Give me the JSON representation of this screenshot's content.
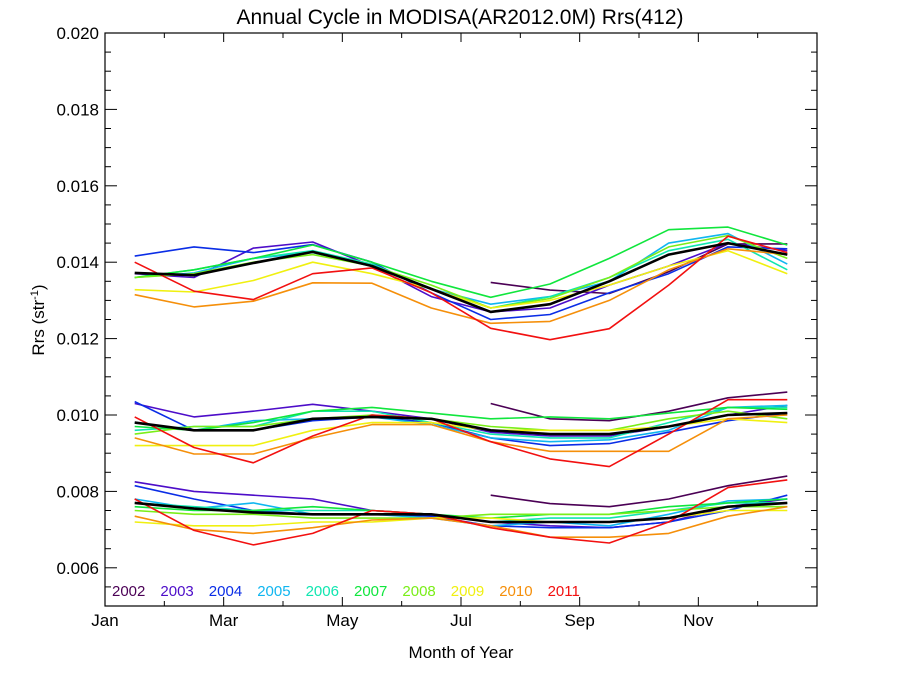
{
  "chart_data": {
    "type": "line",
    "title": "Annual Cycle in MODISA(AR2012.0M) Rrs(412)",
    "xlabel": "Month of Year",
    "ylabel": "Rrs (str",
    "ylabel_sup": "-1",
    "ylabel_close": ")",
    "xlim": [
      0,
      12
    ],
    "ylim": [
      0.005,
      0.02
    ],
    "x_ticks": [
      0,
      2,
      4,
      6,
      8,
      10
    ],
    "x_tick_labels": [
      "Jan",
      "Mar",
      "May",
      "Jul",
      "Sep",
      "Nov"
    ],
    "y_ticks": [
      0.006,
      0.008,
      0.01,
      0.012,
      0.014,
      0.016,
      0.018,
      0.02
    ],
    "y_tick_labels": [
      "0.006",
      "0.008",
      "0.010",
      "0.012",
      "0.014",
      "0.016",
      "0.018",
      "0.020"
    ],
    "grid": false,
    "legend_position": "bottom-left",
    "x": [
      0.5,
      1.5,
      2.5,
      3.5,
      4.5,
      5.5,
      6.5,
      7.5,
      8.5,
      9.5,
      10.5,
      11.5
    ],
    "series": [
      {
        "name": "2002",
        "color": "#4b0055",
        "upper": [
          null,
          null,
          null,
          null,
          null,
          null,
          0.01347,
          0.01327,
          0.01318,
          0.01375,
          0.01448,
          0.01448
        ],
        "middle": [
          null,
          null,
          null,
          null,
          null,
          null,
          0.0103,
          0.0099,
          0.00985,
          0.0101,
          0.01045,
          0.0106
        ],
        "lower": [
          null,
          null,
          null,
          null,
          null,
          null,
          0.0079,
          0.00768,
          0.0076,
          0.0078,
          0.00815,
          0.0084
        ]
      },
      {
        "name": "2003",
        "color": "#4d0dc9",
        "upper": [
          0.0137,
          0.0136,
          0.01437,
          0.01453,
          0.0139,
          0.0131,
          0.0127,
          0.0128,
          0.0134,
          0.0139,
          0.0145,
          0.0143
        ],
        "middle": [
          0.0103,
          0.00995,
          0.0101,
          0.01028,
          0.0101,
          0.0099,
          0.00955,
          0.00945,
          0.00945,
          0.0097,
          0.01,
          0.01025
        ],
        "lower": [
          0.00825,
          0.008,
          0.0079,
          0.0078,
          0.0075,
          0.0074,
          0.0072,
          0.0071,
          0.00705,
          0.0072,
          0.0076,
          0.0078
        ]
      },
      {
        "name": "2004",
        "color": "#0a2de6",
        "upper": [
          0.01416,
          0.0144,
          0.01425,
          0.01446,
          0.014,
          0.0132,
          0.0125,
          0.01263,
          0.0132,
          0.0137,
          0.0144,
          0.01435
        ],
        "middle": [
          0.01035,
          0.0096,
          0.0096,
          0.00985,
          0.00995,
          0.0098,
          0.0094,
          0.0092,
          0.00925,
          0.00955,
          0.00985,
          0.01005
        ],
        "lower": [
          0.00815,
          0.0078,
          0.0075,
          0.0074,
          0.0074,
          0.00735,
          0.0071,
          0.00705,
          0.00705,
          0.0072,
          0.0075,
          0.0079
        ]
      },
      {
        "name": "2005",
        "color": "#10b6f0",
        "upper": [
          0.0136,
          0.01372,
          0.0141,
          0.01425,
          0.0139,
          0.0133,
          0.0129,
          0.0131,
          0.0135,
          0.0145,
          0.01475,
          0.01395
        ],
        "middle": [
          0.0098,
          0.0096,
          0.00985,
          0.0099,
          0.00995,
          0.00975,
          0.0094,
          0.0093,
          0.00935,
          0.0096,
          0.0102,
          0.01025
        ],
        "lower": [
          0.0078,
          0.00755,
          0.0077,
          0.0074,
          0.0074,
          0.0073,
          0.0071,
          0.0072,
          0.0071,
          0.0074,
          0.00775,
          0.0078
        ]
      },
      {
        "name": "2006",
        "color": "#10e6b0",
        "upper": [
          0.0136,
          0.0138,
          0.0141,
          0.0143,
          0.01395,
          0.0133,
          0.0128,
          0.0131,
          0.0136,
          0.0143,
          0.0146,
          0.0138
        ],
        "middle": [
          0.0096,
          0.0097,
          0.0097,
          0.0101,
          0.0101,
          0.0098,
          0.0095,
          0.0094,
          0.0094,
          0.0098,
          0.0102,
          0.0102
        ],
        "lower": [
          0.0077,
          0.0076,
          0.0075,
          0.0075,
          0.0075,
          0.0074,
          0.0072,
          0.0073,
          0.0073,
          0.0075,
          0.0077,
          0.0077
        ]
      },
      {
        "name": "2007",
        "color": "#10e63d",
        "upper": [
          0.0136,
          0.0138,
          0.0141,
          0.01445,
          0.014,
          0.0135,
          0.01308,
          0.01343,
          0.0141,
          0.01485,
          0.01492,
          0.01445
        ],
        "middle": [
          0.0097,
          0.0096,
          0.0098,
          0.0101,
          0.0102,
          0.01005,
          0.0099,
          0.00995,
          0.0099,
          0.01005,
          0.0102,
          0.01015
        ],
        "lower": [
          0.0076,
          0.0075,
          0.0075,
          0.0076,
          0.0075,
          0.0074,
          0.0073,
          0.0074,
          0.0074,
          0.0076,
          0.0077,
          0.0078
        ]
      },
      {
        "name": "2008",
        "color": "#7aee18",
        "upper": [
          0.0136,
          0.0137,
          0.014,
          0.0142,
          0.0139,
          0.0134,
          0.0128,
          0.01305,
          0.0136,
          0.0144,
          0.0147,
          0.0141
        ],
        "middle": [
          0.0095,
          0.0097,
          0.0097,
          0.0099,
          0.01,
          0.0099,
          0.0097,
          0.0096,
          0.0096,
          0.0099,
          0.0101,
          0.0099
        ],
        "lower": [
          0.0075,
          0.0074,
          0.0074,
          0.0073,
          0.0073,
          0.0073,
          0.0074,
          0.0074,
          0.0074,
          0.0075,
          0.0076,
          0.0076
        ]
      },
      {
        "name": "2009",
        "color": "#f0f010",
        "upper": [
          0.01328,
          0.01322,
          0.01352,
          0.014,
          0.0137,
          0.0133,
          0.0128,
          0.013,
          0.0134,
          0.0139,
          0.0143,
          0.0137
        ],
        "middle": [
          0.0092,
          0.0092,
          0.0092,
          0.0096,
          0.0098,
          0.0098,
          0.0096,
          0.0096,
          0.0096,
          0.0097,
          0.0099,
          0.0098
        ],
        "lower": [
          0.0072,
          0.0071,
          0.0071,
          0.0072,
          0.0072,
          0.0073,
          0.0073,
          0.0072,
          0.0072,
          0.0073,
          0.0075,
          0.0075
        ]
      },
      {
        "name": "2010",
        "color": "#f58f0a",
        "upper": [
          0.01315,
          0.01283,
          0.01298,
          0.01346,
          0.01345,
          0.0128,
          0.0124,
          0.01245,
          0.013,
          0.0138,
          0.01435,
          0.0142
        ],
        "middle": [
          0.0094,
          0.00898,
          0.00898,
          0.0094,
          0.00975,
          0.00975,
          0.0093,
          0.00905,
          0.00905,
          0.00905,
          0.0099,
          0.01
        ],
        "lower": [
          0.00735,
          0.007,
          0.0069,
          0.00705,
          0.00725,
          0.0073,
          0.0071,
          0.0068,
          0.0068,
          0.0069,
          0.00735,
          0.0076
        ]
      },
      {
        "name": "2011",
        "color": "#f21010",
        "upper": [
          0.014,
          0.01324,
          0.01302,
          0.0137,
          0.01385,
          0.0132,
          0.01227,
          0.01197,
          0.01226,
          0.0134,
          0.01468,
          0.01425
        ],
        "middle": [
          0.00995,
          0.00915,
          0.00875,
          0.00945,
          0.01,
          0.0099,
          0.0093,
          0.00885,
          0.00865,
          0.0095,
          0.0104,
          0.0104
        ],
        "lower": [
          0.0078,
          0.00698,
          0.0066,
          0.0069,
          0.0075,
          0.0074,
          0.00705,
          0.0068,
          0.00665,
          0.0072,
          0.0081,
          0.0083
        ]
      },
      {
        "name": "",
        "color": "#000000",
        "bold": true,
        "upper": [
          0.01372,
          0.01366,
          0.01398,
          0.01427,
          0.0139,
          0.0133,
          0.0127,
          0.0129,
          0.0135,
          0.0142,
          0.0145,
          0.0142
        ],
        "middle": [
          0.0098,
          0.0096,
          0.0096,
          0.0099,
          0.00995,
          0.0099,
          0.0096,
          0.0095,
          0.0095,
          0.0097,
          0.01,
          0.01005
        ],
        "lower": [
          0.0077,
          0.00755,
          0.00745,
          0.0074,
          0.0074,
          0.0074,
          0.0072,
          0.0072,
          0.0072,
          0.0073,
          0.0076,
          0.0077
        ]
      }
    ]
  }
}
